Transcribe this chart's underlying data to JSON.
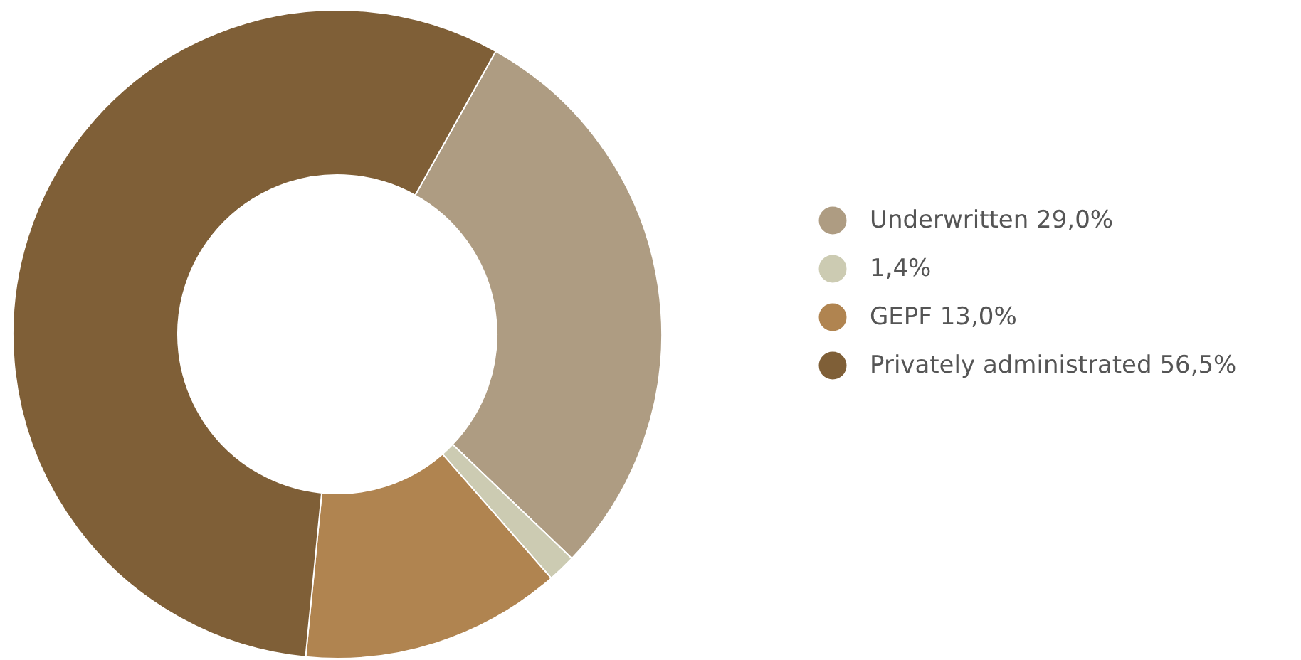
{
  "chart_data": {
    "type": "donut",
    "categories": [
      "Underwritten 29,0%",
      "1,4%",
      "GEPF 13,0%",
      "Privately administrated 56,5%"
    ],
    "values": [
      29.0,
      1.4,
      13.0,
      56.5
    ],
    "colors": [
      "#ae9c82",
      "#cccbb2",
      "#b08450",
      "#7f5f37"
    ],
    "legend": "right"
  }
}
